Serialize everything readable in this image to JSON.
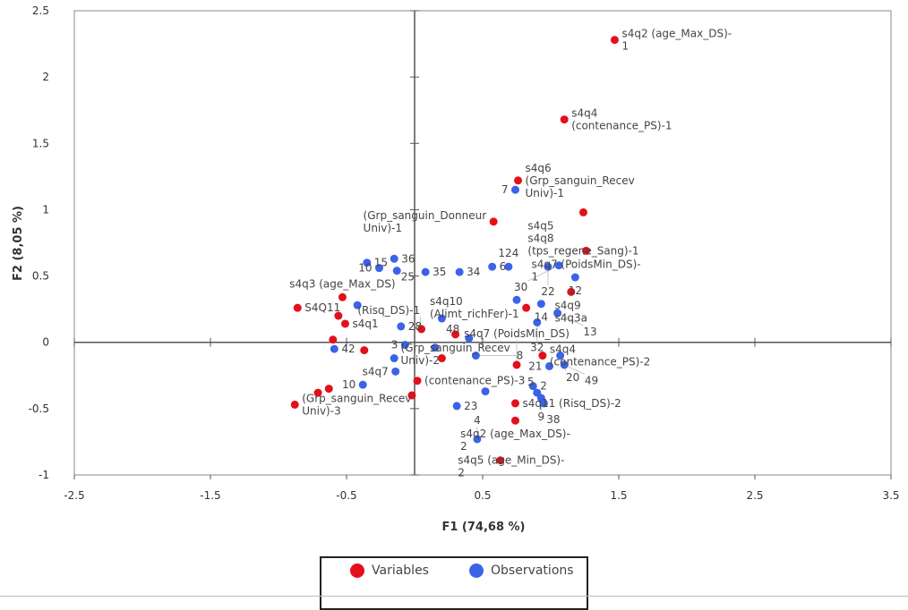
{
  "chart_data": {
    "type": "scatter",
    "title": "",
    "xlabel": "F1 (74,68 %)",
    "ylabel": "F2 (8,05 %)",
    "xlim": [
      -2.5,
      3.5
    ],
    "ylim": [
      -1,
      2.5
    ],
    "xticks": [
      -2.5,
      -1.5,
      -0.5,
      0.5,
      1.5,
      2.5,
      3.5
    ],
    "xtick_labels": [
      "-2.5",
      "-1.5",
      "-0.5",
      "0.5",
      "1.5",
      "2.5",
      "3.5"
    ],
    "yticks": [
      -1,
      -0.5,
      0,
      0.5,
      1,
      1.5,
      2,
      2.5
    ],
    "ytick_labels": [
      "-1",
      "-0.5",
      "0",
      "0.5",
      "1",
      "1.5",
      "2",
      "2.5"
    ],
    "grid": false,
    "legend_position": "bottom",
    "series": [
      {
        "name": "Variables",
        "color": "#e3101a",
        "points": [
          {
            "x": 1.47,
            "y": 2.28,
            "label": [
              "s4q2 (age_Max_DS)-",
              "1"
            ]
          },
          {
            "x": 1.1,
            "y": 1.68,
            "label": [
              "s4q4",
              "(contenance_PS)-1"
            ]
          },
          {
            "x": 0.76,
            "y": 1.22,
            "label": [
              "s4q6",
              "(Grp_sanguin_Recev",
              "Univ)-1"
            ]
          },
          {
            "x": 1.24,
            "y": 0.98,
            "label": [
              "s4q5",
              "s4q8",
              "(tps_regene_Sang)-1"
            ]
          },
          {
            "x": 0.58,
            "y": 0.91,
            "label": [
              "(Grp_sanguin_Donneur",
              "Univ)-1"
            ]
          },
          {
            "x": 1.26,
            "y": 0.69,
            "label": [
              "s4q7 (PoidsMin_DS)-",
              "1"
            ]
          },
          {
            "x": 1.15,
            "y": 0.38,
            "label": [
              "s4q9",
              "s4q3a"
            ]
          },
          {
            "x": 0.82,
            "y": 0.26,
            "label": [
              "s4q10",
              "(Alimt_richFer)-1"
            ]
          },
          {
            "x": -0.86,
            "y": 0.26,
            "label": [
              "S4Q11"
            ]
          },
          {
            "x": -0.53,
            "y": 0.34,
            "label": [
              "s4q3 (age_Max_DS)"
            ]
          },
          {
            "x": -0.56,
            "y": 0.2,
            "label": []
          },
          {
            "x": -0.51,
            "y": 0.14,
            "label": [
              "s4q1"
            ]
          },
          {
            "x": -0.6,
            "y": 0.02,
            "label": []
          },
          {
            "x": -0.37,
            "y": -0.06,
            "label": []
          },
          {
            "x": 0.02,
            "y": -0.29,
            "label": [
              "(contenance_PS)-3"
            ]
          },
          {
            "x": -0.02,
            "y": -0.4,
            "label": []
          },
          {
            "x": -0.88,
            "y": -0.47,
            "label": [
              "(Grp_sanguin_Recev",
              "Univ)-3"
            ]
          },
          {
            "x": -0.71,
            "y": -0.38,
            "label": []
          },
          {
            "x": -0.63,
            "y": -0.35,
            "label": []
          },
          {
            "x": 0.74,
            "y": -0.46,
            "label": [
              "s4q11 (Risq_DS)-2"
            ]
          },
          {
            "x": 0.74,
            "y": -0.59,
            "label": [
              "s4q2 (age_Max_DS)-",
              "2"
            ]
          },
          {
            "x": 0.63,
            "y": -0.89,
            "label": [
              "s4q5 (age_Min_DS)-",
              "2"
            ]
          },
          {
            "x": 0.94,
            "y": -0.1,
            "label": [
              "s4q4",
              "(contenance_PS)-2"
            ]
          },
          {
            "x": 0.3,
            "y": 0.06,
            "label": [
              "(Grp_sanguin_Recev",
              "Univ)-2"
            ]
          },
          {
            "x": 0.75,
            "y": -0.17,
            "label": [
              "s4q7 (PoidsMin_DS)"
            ]
          },
          {
            "x": 0.2,
            "y": -0.12,
            "label": []
          },
          {
            "x": 0.05,
            "y": 0.1,
            "label": [
              "(Risq_DS)-1"
            ]
          }
        ]
      },
      {
        "name": "Observations",
        "color": "#3b63e8",
        "points": [
          {
            "x": 0.74,
            "y": 1.15,
            "label": [
              "7"
            ]
          },
          {
            "x": -0.35,
            "y": 0.6,
            "label": [
              "15"
            ]
          },
          {
            "x": -0.15,
            "y": 0.63,
            "label": [
              "36"
            ]
          },
          {
            "x": -0.26,
            "y": 0.56,
            "label": [
              "10"
            ]
          },
          {
            "x": -0.13,
            "y": 0.54,
            "label": [
              "25"
            ]
          },
          {
            "x": 0.08,
            "y": 0.53,
            "label": [
              "35"
            ]
          },
          {
            "x": 0.33,
            "y": 0.53,
            "label": [
              "34"
            ]
          },
          {
            "x": 0.57,
            "y": 0.57,
            "label": [
              "6"
            ]
          },
          {
            "x": 0.69,
            "y": 0.57,
            "label": [
              "124"
            ]
          },
          {
            "x": 0.98,
            "y": 0.57,
            "label": [
              "22"
            ]
          },
          {
            "x": 1.06,
            "y": 0.58,
            "label": [
              "30"
            ]
          },
          {
            "x": 1.18,
            "y": 0.49,
            "label": [
              "12"
            ]
          },
          {
            "x": 0.75,
            "y": 0.32,
            "label": []
          },
          {
            "x": 0.93,
            "y": 0.29,
            "label": [
              "14"
            ]
          },
          {
            "x": 1.05,
            "y": 0.22,
            "label": [
              "13"
            ]
          },
          {
            "x": -0.42,
            "y": 0.28,
            "label": []
          },
          {
            "x": -0.1,
            "y": 0.12,
            "label": [
              "28"
            ]
          },
          {
            "x": 0.2,
            "y": 0.18,
            "label": []
          },
          {
            "x": 0.4,
            "y": 0.03,
            "label": [
              "48"
            ]
          },
          {
            "x": 0.9,
            "y": 0.15,
            "label": [
              "32"
            ]
          },
          {
            "x": -0.59,
            "y": -0.05,
            "label": [
              "42"
            ]
          },
          {
            "x": -0.07,
            "y": -0.02,
            "label": [
              "3"
            ]
          },
          {
            "x": 0.15,
            "y": -0.04,
            "label": []
          },
          {
            "x": 0.45,
            "y": -0.1,
            "label": [
              "8"
            ]
          },
          {
            "x": -0.15,
            "y": -0.12,
            "label": []
          },
          {
            "x": -0.14,
            "y": -0.22,
            "label": [
              "s4q7"
            ]
          },
          {
            "x": -0.38,
            "y": -0.32,
            "label": [
              "10"
            ]
          },
          {
            "x": 0.46,
            "y": -0.73,
            "label": [
              "4"
            ]
          },
          {
            "x": 0.31,
            "y": -0.48,
            "label": [
              "23"
            ]
          },
          {
            "x": 0.52,
            "y": -0.37,
            "label": []
          },
          {
            "x": 0.87,
            "y": -0.33,
            "label": [
              "2"
            ]
          },
          {
            "x": 0.9,
            "y": -0.38,
            "label": [
              "5"
            ]
          },
          {
            "x": 0.93,
            "y": -0.42,
            "label": [
              "9"
            ]
          },
          {
            "x": 0.99,
            "y": -0.18,
            "label": [
              "21"
            ]
          },
          {
            "x": 1.07,
            "y": -0.1,
            "label": [
              "20"
            ]
          },
          {
            "x": 1.1,
            "y": -0.17,
            "label": [
              "49"
            ]
          },
          {
            "x": 0.95,
            "y": -0.46,
            "label": [
              "38"
            ]
          }
        ]
      }
    ]
  }
}
